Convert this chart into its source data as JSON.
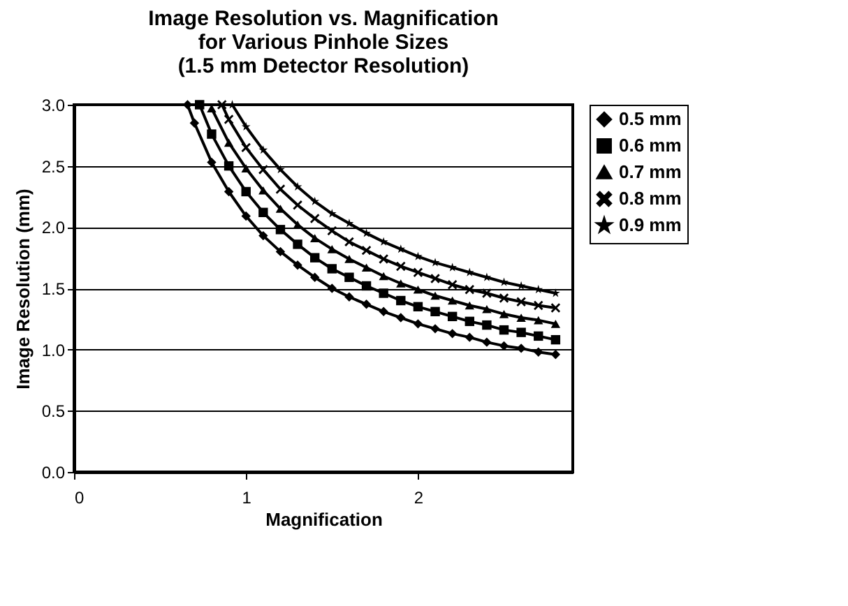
{
  "chart_data": {
    "type": "line",
    "title": [
      "Image Resolution vs. Magnification",
      "for Various Pinhole Sizes",
      "(1.5 mm Detector Resolution)"
    ],
    "xlabel": "Magnification",
    "ylabel": "Image Resolution (mm)",
    "xlim": [
      0,
      2.9
    ],
    "xticks": [
      0,
      1,
      2
    ],
    "ylim": [
      0,
      3.0
    ],
    "yticks": [
      {
        "value": 0,
        "label": "0.0"
      },
      0.5,
      {
        "value": 1,
        "label": "1.0"
      },
      1.5,
      {
        "value": 2,
        "label": "2.0"
      },
      2.5,
      {
        "value": 3,
        "label": "3.0"
      }
    ],
    "grid": "y",
    "legend": "right",
    "series": [
      {
        "name": "0.5 mm",
        "color": "#000000",
        "marker": "diamond",
        "x": [
          0.66,
          0.7,
          0.8,
          0.9,
          1.0,
          1.1,
          1.2,
          1.3,
          1.4,
          1.5,
          1.6,
          1.7,
          1.8,
          1.9,
          2.0,
          2.1,
          2.2,
          2.3,
          2.4,
          2.5,
          2.6,
          2.7,
          2.8
        ],
        "values": [
          3.0,
          2.85,
          2.53,
          2.29,
          2.09,
          1.93,
          1.8,
          1.69,
          1.59,
          1.5,
          1.43,
          1.37,
          1.31,
          1.26,
          1.21,
          1.17,
          1.13,
          1.1,
          1.06,
          1.03,
          1.01,
          0.98,
          0.96
        ]
      },
      {
        "name": "0.6 mm",
        "color": "#000000",
        "marker": "square",
        "x": [
          0.73,
          0.8,
          0.9,
          1.0,
          1.1,
          1.2,
          1.3,
          1.4,
          1.5,
          1.6,
          1.7,
          1.8,
          1.9,
          2.0,
          2.1,
          2.2,
          2.3,
          2.4,
          2.5,
          2.6,
          2.7,
          2.8
        ],
        "values": [
          3.0,
          2.76,
          2.5,
          2.29,
          2.12,
          1.98,
          1.86,
          1.75,
          1.66,
          1.59,
          1.52,
          1.46,
          1.4,
          1.35,
          1.31,
          1.27,
          1.23,
          1.2,
          1.16,
          1.14,
          1.11,
          1.08
        ]
      },
      {
        "name": "0.7 mm",
        "color": "#000000",
        "marker": "triangle",
        "x": [
          0.8,
          0.9,
          1.0,
          1.1,
          1.2,
          1.3,
          1.4,
          1.5,
          1.6,
          1.7,
          1.8,
          1.9,
          2.0,
          2.1,
          2.2,
          2.3,
          2.4,
          2.5,
          2.6,
          2.7,
          2.8
        ],
        "values": [
          2.97,
          2.69,
          2.48,
          2.3,
          2.15,
          2.02,
          1.91,
          1.82,
          1.74,
          1.67,
          1.6,
          1.54,
          1.49,
          1.44,
          1.4,
          1.36,
          1.33,
          1.29,
          1.26,
          1.24,
          1.21
        ]
      },
      {
        "name": "0.8 mm",
        "color": "#000000",
        "marker": "cross",
        "x": [
          0.86,
          0.9,
          1.0,
          1.1,
          1.2,
          1.3,
          1.4,
          1.5,
          1.6,
          1.7,
          1.8,
          1.9,
          2.0,
          2.1,
          2.2,
          2.3,
          2.4,
          2.5,
          2.6,
          2.7,
          2.8
        ],
        "values": [
          3.0,
          2.88,
          2.65,
          2.47,
          2.31,
          2.18,
          2.07,
          1.97,
          1.88,
          1.81,
          1.74,
          1.68,
          1.63,
          1.58,
          1.53,
          1.49,
          1.46,
          1.42,
          1.39,
          1.36,
          1.34
        ]
      },
      {
        "name": "0.9 mm",
        "color": "#000000",
        "marker": "star",
        "x": [
          0.92,
          1.0,
          1.1,
          1.2,
          1.3,
          1.4,
          1.5,
          1.6,
          1.7,
          1.8,
          1.9,
          2.0,
          2.1,
          2.2,
          2.3,
          2.4,
          2.5,
          2.6,
          2.7,
          2.8
        ],
        "values": [
          3.0,
          2.82,
          2.63,
          2.47,
          2.33,
          2.21,
          2.11,
          2.03,
          1.95,
          1.88,
          1.82,
          1.76,
          1.71,
          1.67,
          1.63,
          1.59,
          1.55,
          1.52,
          1.49,
          1.46
        ]
      }
    ]
  }
}
